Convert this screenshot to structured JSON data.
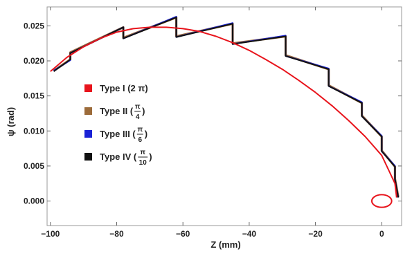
{
  "chart_data": {
    "type": "line",
    "title": "",
    "xlabel": "Z (mm)",
    "ylabel": "ψ (rad)",
    "xlim": [
      -101,
      6
    ],
    "ylim": [
      -0.0035,
      0.0277
    ],
    "x_ticks": [
      "−100",
      "−80",
      "−60",
      "−40",
      "−20",
      "0"
    ],
    "x_tick_values": [
      -100,
      -80,
      -60,
      -40,
      -20,
      0
    ],
    "y_ticks": [
      "0.000",
      "0.005",
      "0.010",
      "0.015",
      "0.020",
      "0.025"
    ],
    "y_tick_values": [
      0,
      0.005,
      0.01,
      0.015,
      0.02,
      0.025
    ],
    "grid": false,
    "legend_position": "center-left",
    "series": [
      {
        "name": "Type I (2 π)",
        "legend_prefix": "Type I (2 π)",
        "fraction": null,
        "color": "#e8141c",
        "points": [
          [
            -100,
            0.0185
          ],
          [
            -95,
            0.0205
          ],
          [
            -90,
            0.022
          ],
          [
            -85,
            0.0232
          ],
          [
            -80,
            0.0241
          ],
          [
            -75,
            0.0246
          ],
          [
            -70,
            0.0248
          ],
          [
            -65,
            0.0248
          ],
          [
            -60,
            0.0246
          ],
          [
            -55,
            0.0242
          ],
          [
            -50,
            0.0235
          ],
          [
            -45,
            0.0226
          ],
          [
            -40,
            0.0215
          ],
          [
            -35,
            0.0202
          ],
          [
            -30,
            0.0188
          ],
          [
            -25,
            0.0172
          ],
          [
            -20,
            0.0155
          ],
          [
            -15,
            0.0136
          ],
          [
            -10,
            0.0115
          ],
          [
            -5,
            0.0092
          ],
          [
            0,
            0.0065
          ],
          [
            2,
            0.0045
          ],
          [
            4,
            0.0025
          ],
          [
            4.5,
            0.0005
          ]
        ],
        "loop": {
          "cx": 0,
          "cy": 0,
          "rx": 3.0,
          "ry": 0.0009
        }
      },
      {
        "name": "Type II (π/4)",
        "legend_prefix": "Type II (",
        "fraction": {
          "num": "π",
          "den": "4"
        },
        "color": "#9c6b3a",
        "points": [
          [
            -99,
            0.0186
          ],
          [
            -94,
            0.0202
          ],
          [
            -94,
            0.0212
          ],
          [
            -78,
            0.0248
          ],
          [
            -78,
            0.0233
          ],
          [
            -62,
            0.0262
          ],
          [
            -62,
            0.0235
          ],
          [
            -45,
            0.0253
          ],
          [
            -45,
            0.0225
          ],
          [
            -29,
            0.0235
          ],
          [
            -29,
            0.0208
          ],
          [
            -16,
            0.0188
          ],
          [
            -16,
            0.0165
          ],
          [
            -6,
            0.014
          ],
          [
            -6,
            0.0122
          ],
          [
            0,
            0.0092
          ],
          [
            0,
            0.0072
          ],
          [
            4,
            0.0049
          ],
          [
            4,
            0.0032
          ],
          [
            5,
            0.0006
          ]
        ]
      },
      {
        "name": "Type III (π/6)",
        "legend_prefix": "Type III (",
        "fraction": {
          "num": "π",
          "den": "6"
        },
        "color": "#1a22d6",
        "points": [
          [
            -99,
            0.0186
          ],
          [
            -94,
            0.0201
          ],
          [
            -94,
            0.0211
          ],
          [
            -78,
            0.0248
          ],
          [
            -78,
            0.0232
          ],
          [
            -62,
            0.0263
          ],
          [
            -62,
            0.0234
          ],
          [
            -45,
            0.0254
          ],
          [
            -45,
            0.0224
          ],
          [
            -29,
            0.0236
          ],
          [
            -29,
            0.0207
          ],
          [
            -16,
            0.0189
          ],
          [
            -16,
            0.0164
          ],
          [
            -6,
            0.0141
          ],
          [
            -6,
            0.0121
          ],
          [
            0,
            0.0093
          ],
          [
            0,
            0.0071
          ],
          [
            4,
            0.005
          ],
          [
            4,
            0.0031
          ],
          [
            5,
            0.0005
          ]
        ]
      },
      {
        "name": "Type IV (π/10)",
        "legend_prefix": "Type IV (",
        "fraction": {
          "num": "π",
          "den": "10"
        },
        "color": "#111111",
        "points": [
          [
            -99,
            0.0185
          ],
          [
            -94,
            0.0202
          ],
          [
            -94,
            0.0211
          ],
          [
            -78,
            0.0248
          ],
          [
            -78,
            0.0232
          ],
          [
            -62,
            0.0262
          ],
          [
            -62,
            0.0234
          ],
          [
            -45,
            0.0253
          ],
          [
            -45,
            0.0224
          ],
          [
            -29,
            0.0235
          ],
          [
            -29,
            0.0207
          ],
          [
            -16,
            0.0188
          ],
          [
            -16,
            0.0164
          ],
          [
            -6,
            0.014
          ],
          [
            -6,
            0.0121
          ],
          [
            0,
            0.0092
          ],
          [
            0,
            0.0071
          ],
          [
            4,
            0.0049
          ],
          [
            4,
            0.0031
          ],
          [
            5,
            0.0005
          ]
        ]
      }
    ]
  }
}
